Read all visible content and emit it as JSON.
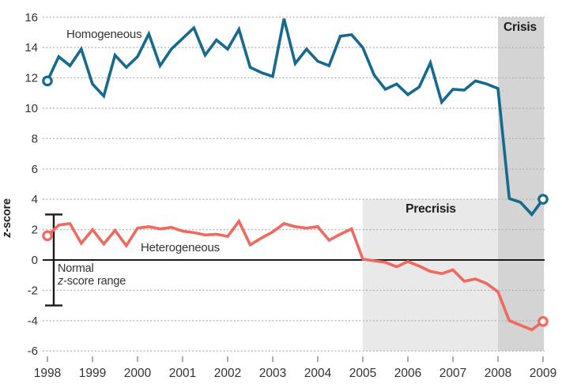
{
  "chart_data": {
    "type": "line",
    "title": "",
    "xlabel": "",
    "ylabel": "z-score",
    "x_ticks": [
      1998,
      1999,
      2000,
      2001,
      2002,
      2003,
      2004,
      2005,
      2006,
      2007,
      2008,
      2009
    ],
    "y_ticks": [
      16,
      14,
      12,
      10,
      8,
      6,
      4,
      2,
      0,
      -2,
      -4,
      -6
    ],
    "ylim": [
      -6.8,
      16.5
    ],
    "xlim": [
      1997.9,
      2009.4
    ],
    "grid": "dotted horizontal, solid line at zero",
    "legend_position": "inline labels on plot",
    "x_start": 1998.0,
    "x_step": 0.25,
    "series": [
      {
        "name": "Homogeneous",
        "color": "#17698d",
        "marker_first": true,
        "marker_last": true,
        "values": [
          11.8,
          13.4,
          12.8,
          13.9,
          11.6,
          10.8,
          13.5,
          12.7,
          13.4,
          14.9,
          12.8,
          13.9,
          14.6,
          15.3,
          13.5,
          14.5,
          13.9,
          15.2,
          12.7,
          12.35,
          12.1,
          15.9,
          12.95,
          13.9,
          13.1,
          12.8,
          14.75,
          14.85,
          14.0,
          12.2,
          11.25,
          11.6,
          10.9,
          11.4,
          13.0,
          10.4,
          11.25,
          11.2,
          11.8,
          11.6,
          11.3,
          4.05,
          3.8,
          3.0,
          4.0
        ]
      },
      {
        "name": "Heterogeneous",
        "color": "#f0695e",
        "marker_first": true,
        "marker_last": true,
        "values": [
          1.6,
          2.3,
          2.4,
          1.1,
          2.0,
          1.05,
          1.95,
          0.95,
          2.1,
          2.2,
          2.05,
          2.15,
          1.9,
          1.8,
          1.65,
          1.7,
          1.55,
          2.55,
          1.0,
          1.45,
          1.85,
          2.4,
          2.2,
          2.1,
          2.2,
          1.3,
          1.7,
          2.05,
          0.05,
          -0.05,
          -0.15,
          -0.45,
          -0.1,
          -0.4,
          -0.75,
          -0.9,
          -0.65,
          -1.4,
          -1.25,
          -1.55,
          -2.1,
          -4.0,
          -4.3,
          -4.6,
          -4.05
        ]
      }
    ],
    "regions": [
      {
        "label": "Precrisis",
        "x0": 2005.0,
        "x1": 2008.0,
        "y_top": 4,
        "y_bottom": -6,
        "color": "#e9e9e9"
      },
      {
        "label": "Crisis",
        "x0": 2008.0,
        "x1": 2009.02,
        "y_top": 16,
        "y_bottom": -6,
        "color": "#d4d4d4"
      }
    ],
    "normal_range": {
      "x": 1998.14,
      "high": 3.0,
      "low": -3.0,
      "cap_half_width": 11,
      "label": "Normal z-score range"
    },
    "colors": {
      "gridline": "#b0b0b0",
      "zero_line": "#1a1a1a",
      "tick": "#888888",
      "tick_text": "#333333",
      "error_bar": "#1a1a1a"
    }
  },
  "labels": {
    "homogeneous": "Homogeneous",
    "heterogeneous": "Heterogeneous",
    "precrisis": "Precrisis",
    "crisis": "Crisis",
    "normal_line1": "Normal",
    "normal_line2_italic": "z",
    "normal_line2_rest": "-score range",
    "ylabel_italic": "z",
    "ylabel_rest": "-score"
  }
}
